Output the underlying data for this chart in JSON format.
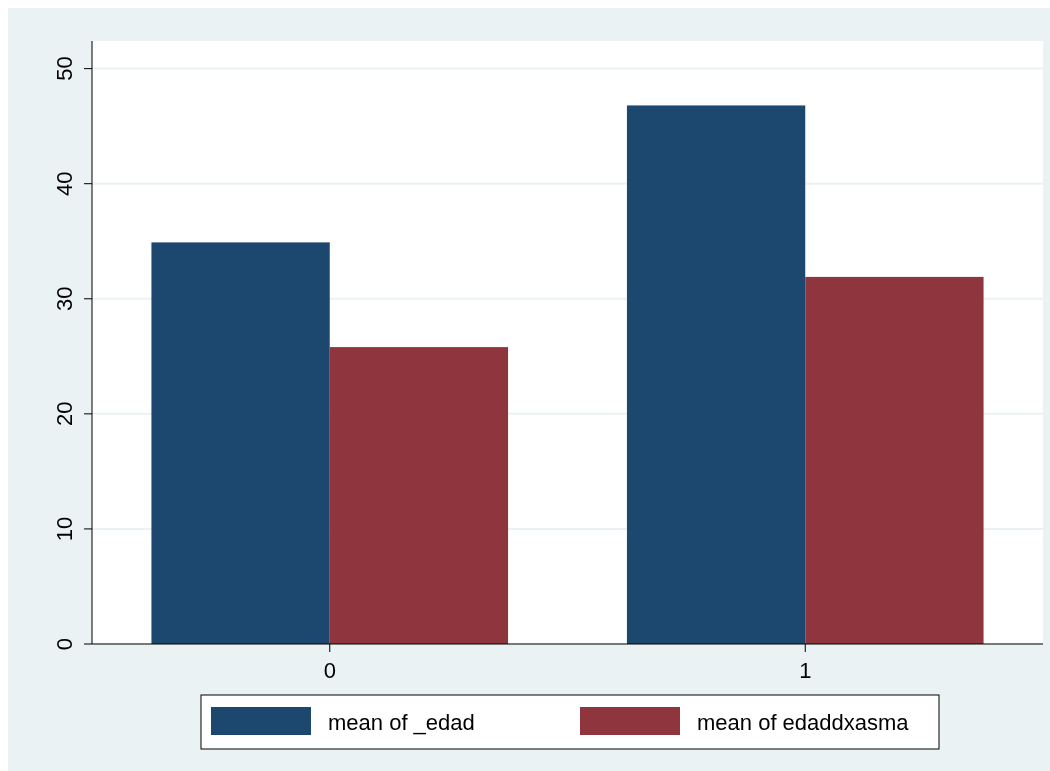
{
  "chart_data": {
    "type": "bar",
    "categories": [
      "0",
      "1"
    ],
    "series": [
      {
        "name": "mean of _edad",
        "color": "#1c476f",
        "values": [
          34.9,
          46.8
        ]
      },
      {
        "name": "mean of edaddxasma",
        "color": "#8f353d",
        "values": [
          25.8,
          31.9
        ]
      }
    ],
    "ylim": [
      0,
      52.4
    ],
    "yticks": [
      0,
      10,
      20,
      30,
      40,
      50
    ],
    "grid": "y",
    "legend": "bottom"
  }
}
